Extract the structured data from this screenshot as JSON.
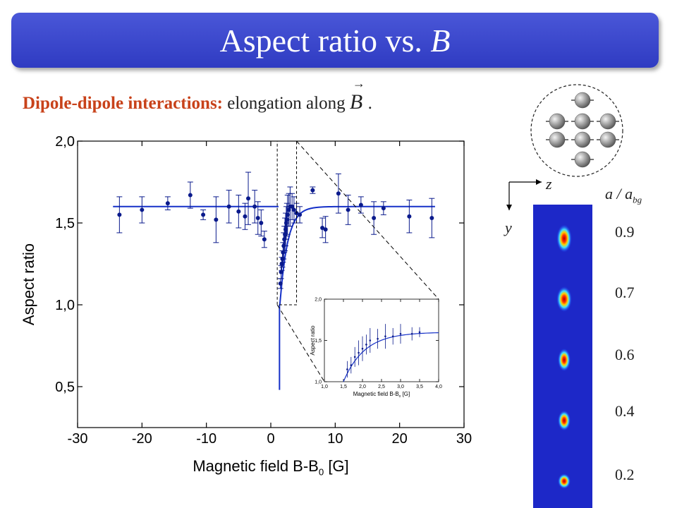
{
  "title": {
    "text": "Aspect ratio vs. ",
    "var": "B"
  },
  "subtitle": {
    "bold": "Dipole-dipole interactions:",
    "rest": " elongation along ",
    "vector": "B",
    "tail": "."
  },
  "chart_data": [
    {
      "type": "scatter",
      "xlabel": "Magnetic field B-B",
      "xlabel_sub": "0",
      "xlabel_unit": " [G]",
      "ylabel": "Aspect ratio",
      "xlim": [
        -30,
        30
      ],
      "ylim": [
        0.25,
        2.0
      ],
      "xticks": [
        "-30",
        "-20",
        "-10",
        "0",
        "10",
        "20",
        "30"
      ],
      "yticks": [
        "0,5",
        "1,0",
        "1,5",
        "2,0"
      ],
      "series": [
        {
          "points": [
            {
              "x": -23.5,
              "y": 1.55,
              "err": 0.11
            },
            {
              "x": -20,
              "y": 1.58,
              "err": 0.08
            },
            {
              "x": -16,
              "y": 1.62,
              "err": 0.04
            },
            {
              "x": -12.5,
              "y": 1.67,
              "err": 0.08
            },
            {
              "x": -10.5,
              "y": 1.55,
              "err": 0.03
            },
            {
              "x": -8.5,
              "y": 1.52,
              "err": 0.14
            },
            {
              "x": -6.5,
              "y": 1.6,
              "err": 0.1
            },
            {
              "x": -5,
              "y": 1.57,
              "err": 0.1
            },
            {
              "x": -4,
              "y": 1.54,
              "err": 0.08
            },
            {
              "x": -3.5,
              "y": 1.65,
              "err": 0.16
            },
            {
              "x": -2.5,
              "y": 1.6,
              "err": 0.1
            },
            {
              "x": -2,
              "y": 1.53,
              "err": 0.1
            },
            {
              "x": -1.5,
              "y": 1.5,
              "err": 0.08
            },
            {
              "x": -1,
              "y": 1.4,
              "err": 0.05
            },
            {
              "x": 1.5,
              "y": 1.13,
              "err": 0.03
            },
            {
              "x": 1.6,
              "y": 1.2,
              "err": 0.04
            },
            {
              "x": 1.7,
              "y": 1.25,
              "err": 0.04
            },
            {
              "x": 1.8,
              "y": 1.28,
              "err": 0.05
            },
            {
              "x": 1.9,
              "y": 1.32,
              "err": 0.06
            },
            {
              "x": 2.0,
              "y": 1.36,
              "err": 0.08
            },
            {
              "x": 2.1,
              "y": 1.4,
              "err": 0.08
            },
            {
              "x": 2.2,
              "y": 1.43,
              "err": 0.1
            },
            {
              "x": 2.3,
              "y": 1.46,
              "err": 0.1
            },
            {
              "x": 2.4,
              "y": 1.5,
              "err": 0.1
            },
            {
              "x": 2.5,
              "y": 1.52,
              "err": 0.1
            },
            {
              "x": 2.6,
              "y": 1.55,
              "err": 0.12
            },
            {
              "x": 2.8,
              "y": 1.58,
              "err": 0.1
            },
            {
              "x": 3.0,
              "y": 1.6,
              "err": 0.12
            },
            {
              "x": 3.3,
              "y": 1.6,
              "err": 0.08
            },
            {
              "x": 3.6,
              "y": 1.58,
              "err": 0.08
            },
            {
              "x": 4.0,
              "y": 1.56,
              "err": 0.06
            },
            {
              "x": 4.5,
              "y": 1.55,
              "err": 0.05
            },
            {
              "x": 6.5,
              "y": 1.7,
              "err": 0.02
            },
            {
              "x": 8,
              "y": 1.47,
              "err": 0.06
            },
            {
              "x": 8.5,
              "y": 1.46,
              "err": 0.08
            },
            {
              "x": 10.5,
              "y": 1.68,
              "err": 0.12
            },
            {
              "x": 12,
              "y": 1.58,
              "err": 0.09
            },
            {
              "x": 14,
              "y": 1.61,
              "err": 0.05
            },
            {
              "x": 16,
              "y": 1.53,
              "err": 0.1
            },
            {
              "x": 17.5,
              "y": 1.59,
              "err": 0.04
            },
            {
              "x": 21.5,
              "y": 1.54,
              "err": 0.1
            },
            {
              "x": 25,
              "y": 1.53,
              "err": 0.12
            }
          ]
        }
      ],
      "colors": {
        "marker": "#0a1a8c",
        "fit": "#1530c8"
      }
    },
    {
      "type": "scatter",
      "xlabel": "Magnetic field B-B",
      "xlabel_sub": "0",
      "xlabel_unit": " [G]",
      "ylabel": "Aspect ratio",
      "xlim": [
        1.0,
        4.0
      ],
      "ylim": [
        1.0,
        2.0
      ],
      "xticks": [
        "1,0",
        "1,5",
        "2,0",
        "2,5",
        "3,0",
        "3,5",
        "4,0"
      ],
      "yticks": [
        "1,0",
        "1,5",
        "2,0"
      ],
      "series": [
        {
          "points": [
            {
              "x": 1.6,
              "y": 1.15,
              "err": 0.1
            },
            {
              "x": 1.7,
              "y": 1.2,
              "err": 0.1
            },
            {
              "x": 1.8,
              "y": 1.3,
              "err": 0.12
            },
            {
              "x": 1.9,
              "y": 1.35,
              "err": 0.15
            },
            {
              "x": 2.0,
              "y": 1.4,
              "err": 0.15
            },
            {
              "x": 2.1,
              "y": 1.45,
              "err": 0.12
            },
            {
              "x": 2.2,
              "y": 1.5,
              "err": 0.15
            },
            {
              "x": 2.4,
              "y": 1.52,
              "err": 0.12
            },
            {
              "x": 2.6,
              "y": 1.55,
              "err": 0.15
            },
            {
              "x": 2.8,
              "y": 1.55,
              "err": 0.1
            },
            {
              "x": 3.0,
              "y": 1.58,
              "err": 0.12
            },
            {
              "x": 3.3,
              "y": 1.58,
              "err": 0.08
            },
            {
              "x": 3.5,
              "y": 1.6,
              "err": 0.06
            }
          ]
        }
      ]
    }
  ],
  "legend_ratio_header": {
    "a": "a / a",
    "sub": "bg"
  },
  "ratios": [
    "0.9",
    "0.7",
    "0.6",
    "0.4",
    "0.2"
  ],
  "axes_labels": {
    "z": "z",
    "y": "y"
  }
}
